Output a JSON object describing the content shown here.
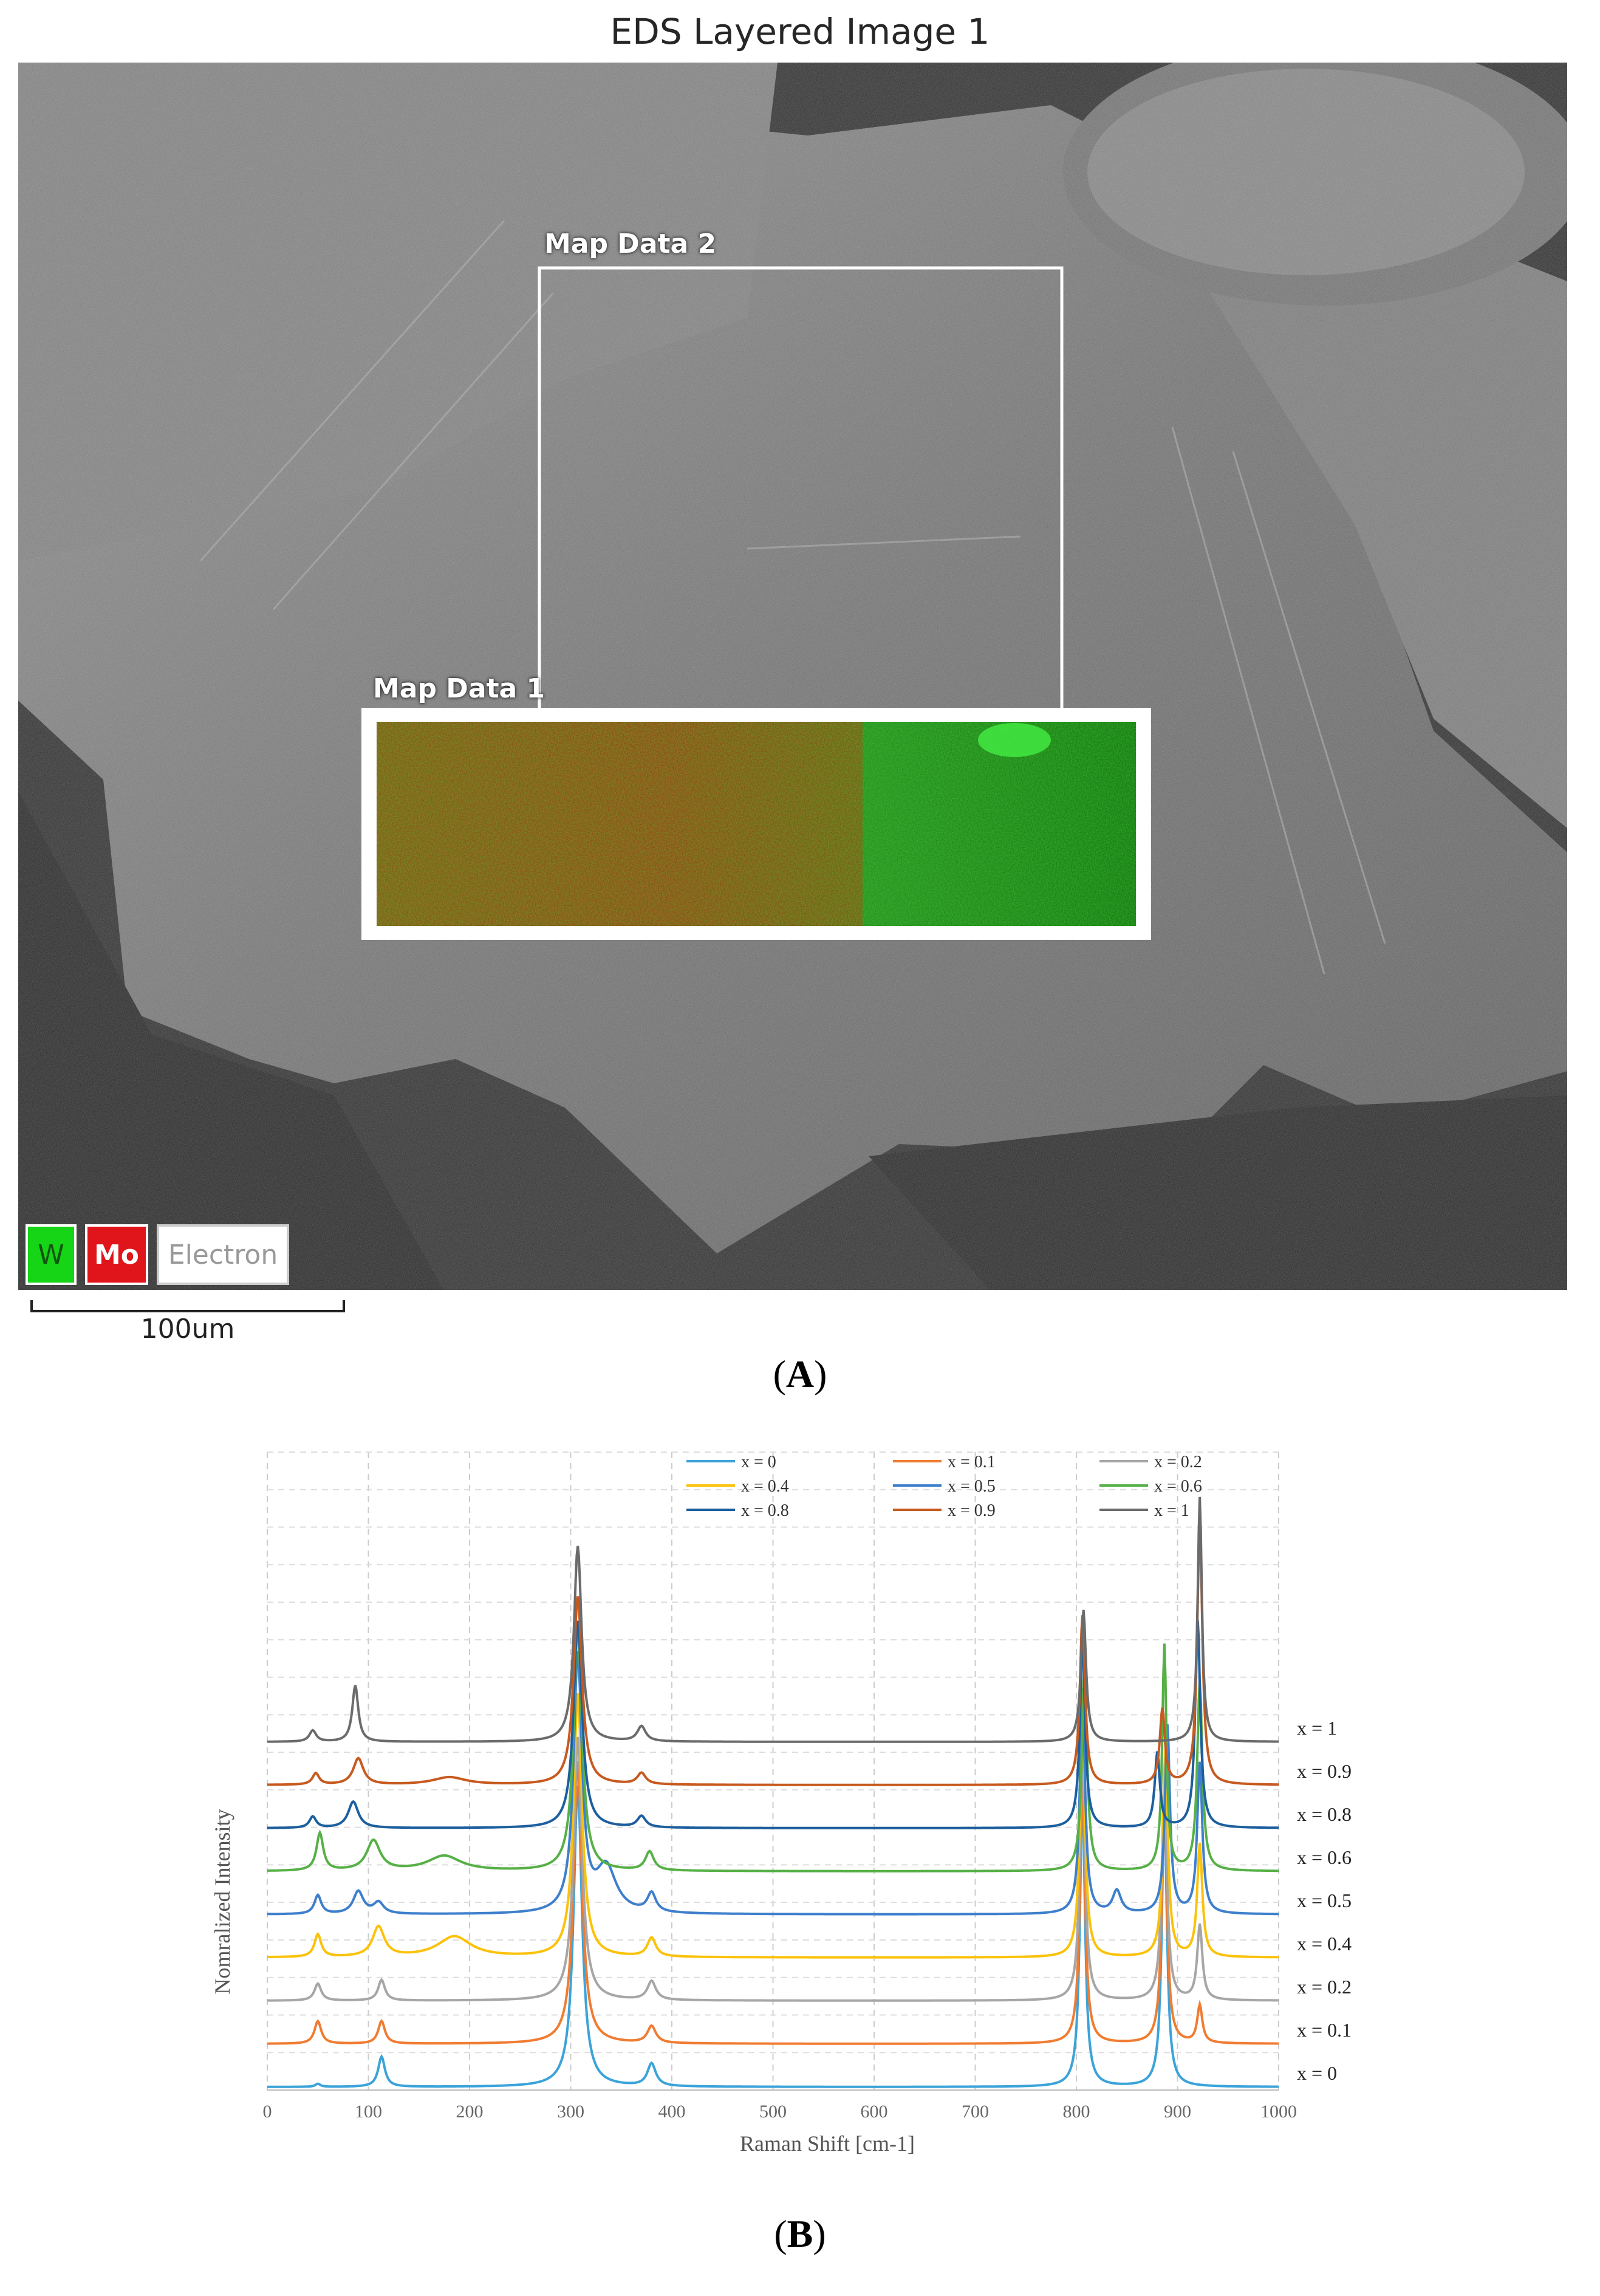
{
  "panel_a": {
    "title": "EDS Layered Image 1",
    "map_data_1_label": "Map Data 1",
    "map_data_2_label": "Map Data 2",
    "legend": {
      "w": "W",
      "mo": "Mo",
      "electron": "Electron"
    },
    "scale_bar": "100um",
    "caption": "A"
  },
  "panel_b": {
    "caption": "B"
  },
  "chart_data": {
    "type": "line",
    "xlabel": "Raman Shift [cm-1]",
    "ylabel": "Nomralized Intensity",
    "xlim": [
      0,
      1000
    ],
    "xticks": [
      0,
      100,
      200,
      300,
      400,
      500,
      600,
      700,
      800,
      900,
      1000
    ],
    "grid": true,
    "legend_position": "top",
    "series": [
      {
        "name": "x = 0",
        "right_label": "x = 0",
        "color": "#3ba3d9",
        "offset": 0,
        "peaks": [
          [
            50,
            0.08,
            3
          ],
          [
            113,
            0.8,
            4
          ],
          [
            307,
            8.0,
            5
          ],
          [
            380,
            0.6,
            5
          ],
          [
            806,
            7.8,
            3
          ],
          [
            887,
            7.5,
            3
          ]
        ]
      },
      {
        "name": "x = 0.1",
        "right_label": "x = 0.1",
        "color": "#f07c32",
        "offset": 1,
        "peaks": [
          [
            50,
            0.6,
            4
          ],
          [
            113,
            0.6,
            4
          ],
          [
            307,
            7.5,
            5
          ],
          [
            380,
            0.45,
            5
          ],
          [
            806,
            7.0,
            3
          ],
          [
            887,
            6.5,
            3
          ],
          [
            922,
            1.0,
            3
          ]
        ]
      },
      {
        "name": "x = 0.2",
        "right_label": "x = 0.2",
        "color": "#a6a6a6",
        "offset": 2,
        "peaks": [
          [
            50,
            0.45,
            4
          ],
          [
            113,
            0.55,
            4
          ],
          [
            307,
            7.0,
            5
          ],
          [
            380,
            0.5,
            5
          ],
          [
            806,
            6.8,
            3
          ],
          [
            887,
            6.0,
            3
          ],
          [
            922,
            2.0,
            3
          ]
        ]
      },
      {
        "name": "x = 0.4",
        "right_label": "x = 0.4",
        "color": "#fbc20a",
        "offset": 3,
        "peaks": [
          [
            50,
            0.6,
            4
          ],
          [
            110,
            0.8,
            7
          ],
          [
            185,
            0.55,
            20
          ],
          [
            307,
            7.0,
            5
          ],
          [
            380,
            0.5,
            5
          ],
          [
            806,
            6.5,
            3
          ],
          [
            888,
            5.5,
            3
          ],
          [
            922,
            3.0,
            3
          ]
        ]
      },
      {
        "name": "x = 0.5",
        "right_label": "x = 0.5",
        "color": "#3e7fcc",
        "offset": 4,
        "peaks": [
          [
            50,
            0.5,
            4
          ],
          [
            90,
            0.6,
            6
          ],
          [
            110,
            0.3,
            6
          ],
          [
            307,
            6.8,
            5
          ],
          [
            335,
            1.2,
            12
          ],
          [
            380,
            0.5,
            5
          ],
          [
            806,
            6.0,
            3
          ],
          [
            840,
            0.6,
            5
          ],
          [
            890,
            5.0,
            3
          ],
          [
            922,
            4.0,
            3
          ]
        ]
      },
      {
        "name": "x = 0.6",
        "right_label": "x = 0.6",
        "color": "#56b046",
        "offset": 5,
        "peaks": [
          [
            52,
            1.0,
            4
          ],
          [
            105,
            0.8,
            8
          ],
          [
            175,
            0.4,
            20
          ],
          [
            307,
            6.5,
            5
          ],
          [
            378,
            0.5,
            5
          ],
          [
            808,
            5.5,
            3
          ],
          [
            887,
            6.0,
            2.5
          ],
          [
            922,
            5.0,
            3
          ]
        ]
      },
      {
        "name": "x = 0.8",
        "right_label": "x = 0.8",
        "color": "#1d5f9e",
        "offset": 6,
        "peaks": [
          [
            45,
            0.3,
            4
          ],
          [
            85,
            0.7,
            6
          ],
          [
            307,
            5.5,
            5
          ],
          [
            370,
            0.3,
            5
          ],
          [
            806,
            5.0,
            3
          ],
          [
            880,
            2.0,
            3
          ],
          [
            920,
            5.5,
            3
          ]
        ]
      },
      {
        "name": "x = 0.9",
        "right_label": "x = 0.9",
        "color": "#c75a1f",
        "offset": 7,
        "peaks": [
          [
            48,
            0.3,
            4
          ],
          [
            90,
            0.7,
            6
          ],
          [
            180,
            0.2,
            20
          ],
          [
            307,
            5.0,
            5
          ],
          [
            370,
            0.3,
            5
          ],
          [
            806,
            4.5,
            3
          ],
          [
            885,
            2.0,
            3
          ],
          [
            922,
            7.0,
            3
          ]
        ]
      },
      {
        "name": "x = 1",
        "right_label": "x = 1",
        "color": "#6b6b6b",
        "offset": 8,
        "peaks": [
          [
            45,
            0.3,
            4
          ],
          [
            87,
            1.5,
            3.5
          ],
          [
            307,
            5.2,
            4.5
          ],
          [
            370,
            0.4,
            5
          ],
          [
            807,
            3.5,
            3
          ],
          [
            922,
            6.5,
            2.5
          ]
        ]
      }
    ]
  }
}
